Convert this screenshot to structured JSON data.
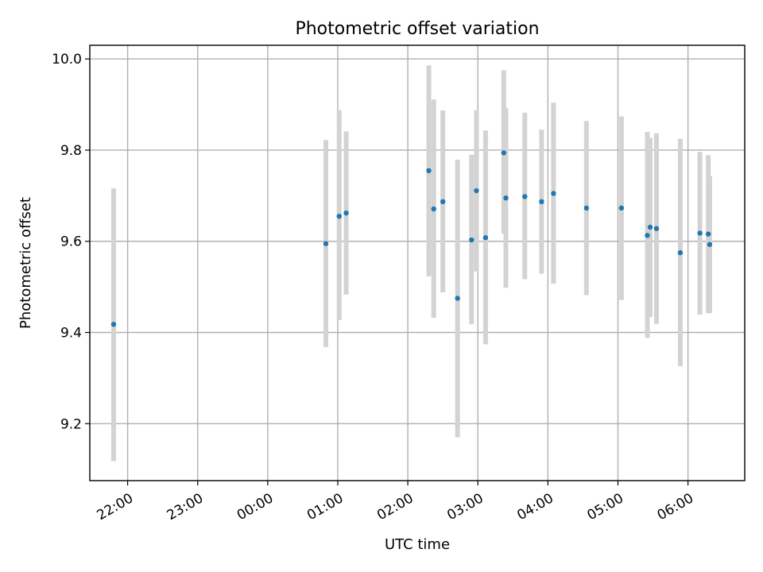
{
  "chart_data": {
    "type": "scatter",
    "title": "Photometric offset variation",
    "xlabel": "UTC time",
    "ylabel": "Photometric offset",
    "xlim": [
      -2.54,
      6.81
    ],
    "ylim": [
      9.075,
      10.03
    ],
    "x_unit": "hours after 00:00 UTC",
    "x_ticks": [
      {
        "value": -2,
        "label": "22:00"
      },
      {
        "value": -1,
        "label": "23:00"
      },
      {
        "value": 0,
        "label": "00:00"
      },
      {
        "value": 1,
        "label": "01:00"
      },
      {
        "value": 2,
        "label": "02:00"
      },
      {
        "value": 3,
        "label": "03:00"
      },
      {
        "value": 4,
        "label": "04:00"
      },
      {
        "value": 5,
        "label": "05:00"
      },
      {
        "value": 6,
        "label": "06:00"
      }
    ],
    "y_ticks": [
      {
        "value": 9.2,
        "label": "9.2"
      },
      {
        "value": 9.4,
        "label": "9.4"
      },
      {
        "value": 9.6,
        "label": "9.6"
      },
      {
        "value": 9.8,
        "label": "9.8"
      },
      {
        "value": 10.0,
        "label": "10.0"
      }
    ],
    "grid": true,
    "colors": {
      "point": "#1f77b4",
      "errorbar": "#d3d3d3"
    },
    "series": [
      {
        "points": [
          {
            "x": -2.2,
            "y": 9.418,
            "ylow": 9.118,
            "yhigh": 9.716
          },
          {
            "x": 0.83,
            "y": 9.595,
            "ylow": 9.368,
            "yhigh": 9.822
          },
          {
            "x": 1.02,
            "y": 9.655,
            "ylow": 9.427,
            "yhigh": 9.888
          },
          {
            "x": 1.12,
            "y": 9.662,
            "ylow": 9.483,
            "yhigh": 9.841
          },
          {
            "x": 2.3,
            "y": 9.755,
            "ylow": 9.523,
            "yhigh": 9.986
          },
          {
            "x": 2.37,
            "y": 9.671,
            "ylow": 9.432,
            "yhigh": 9.911
          },
          {
            "x": 2.5,
            "y": 9.687,
            "ylow": 9.488,
            "yhigh": 9.887
          },
          {
            "x": 2.71,
            "y": 9.475,
            "ylow": 9.17,
            "yhigh": 9.779
          },
          {
            "x": 2.91,
            "y": 9.603,
            "ylow": 9.418,
            "yhigh": 9.79
          },
          {
            "x": 2.98,
            "y": 9.711,
            "ylow": 9.534,
            "yhigh": 9.888
          },
          {
            "x": 3.11,
            "y": 9.608,
            "ylow": 9.374,
            "yhigh": 9.843
          },
          {
            "x": 3.37,
            "y": 9.794,
            "ylow": 9.617,
            "yhigh": 9.975
          },
          {
            "x": 3.4,
            "y": 9.695,
            "ylow": 9.498,
            "yhigh": 9.892
          },
          {
            "x": 3.67,
            "y": 9.698,
            "ylow": 9.517,
            "yhigh": 9.882
          },
          {
            "x": 3.91,
            "y": 9.687,
            "ylow": 9.529,
            "yhigh": 9.845
          },
          {
            "x": 4.08,
            "y": 9.705,
            "ylow": 9.507,
            "yhigh": 9.904
          },
          {
            "x": 4.55,
            "y": 9.673,
            "ylow": 9.482,
            "yhigh": 9.864
          },
          {
            "x": 5.05,
            "y": 9.673,
            "ylow": 9.471,
            "yhigh": 9.874
          },
          {
            "x": 5.42,
            "y": 9.613,
            "ylow": 9.388,
            "yhigh": 9.84
          },
          {
            "x": 5.46,
            "y": 9.631,
            "ylow": 9.434,
            "yhigh": 9.827
          },
          {
            "x": 5.55,
            "y": 9.628,
            "ylow": 9.419,
            "yhigh": 9.837
          },
          {
            "x": 5.89,
            "y": 9.575,
            "ylow": 9.326,
            "yhigh": 9.825
          },
          {
            "x": 6.17,
            "y": 9.618,
            "ylow": 9.439,
            "yhigh": 9.796
          },
          {
            "x": 6.29,
            "y": 9.616,
            "ylow": 9.442,
            "yhigh": 9.789
          },
          {
            "x": 6.31,
            "y": 9.593,
            "ylow": 9.443,
            "yhigh": 9.743
          }
        ]
      }
    ]
  }
}
